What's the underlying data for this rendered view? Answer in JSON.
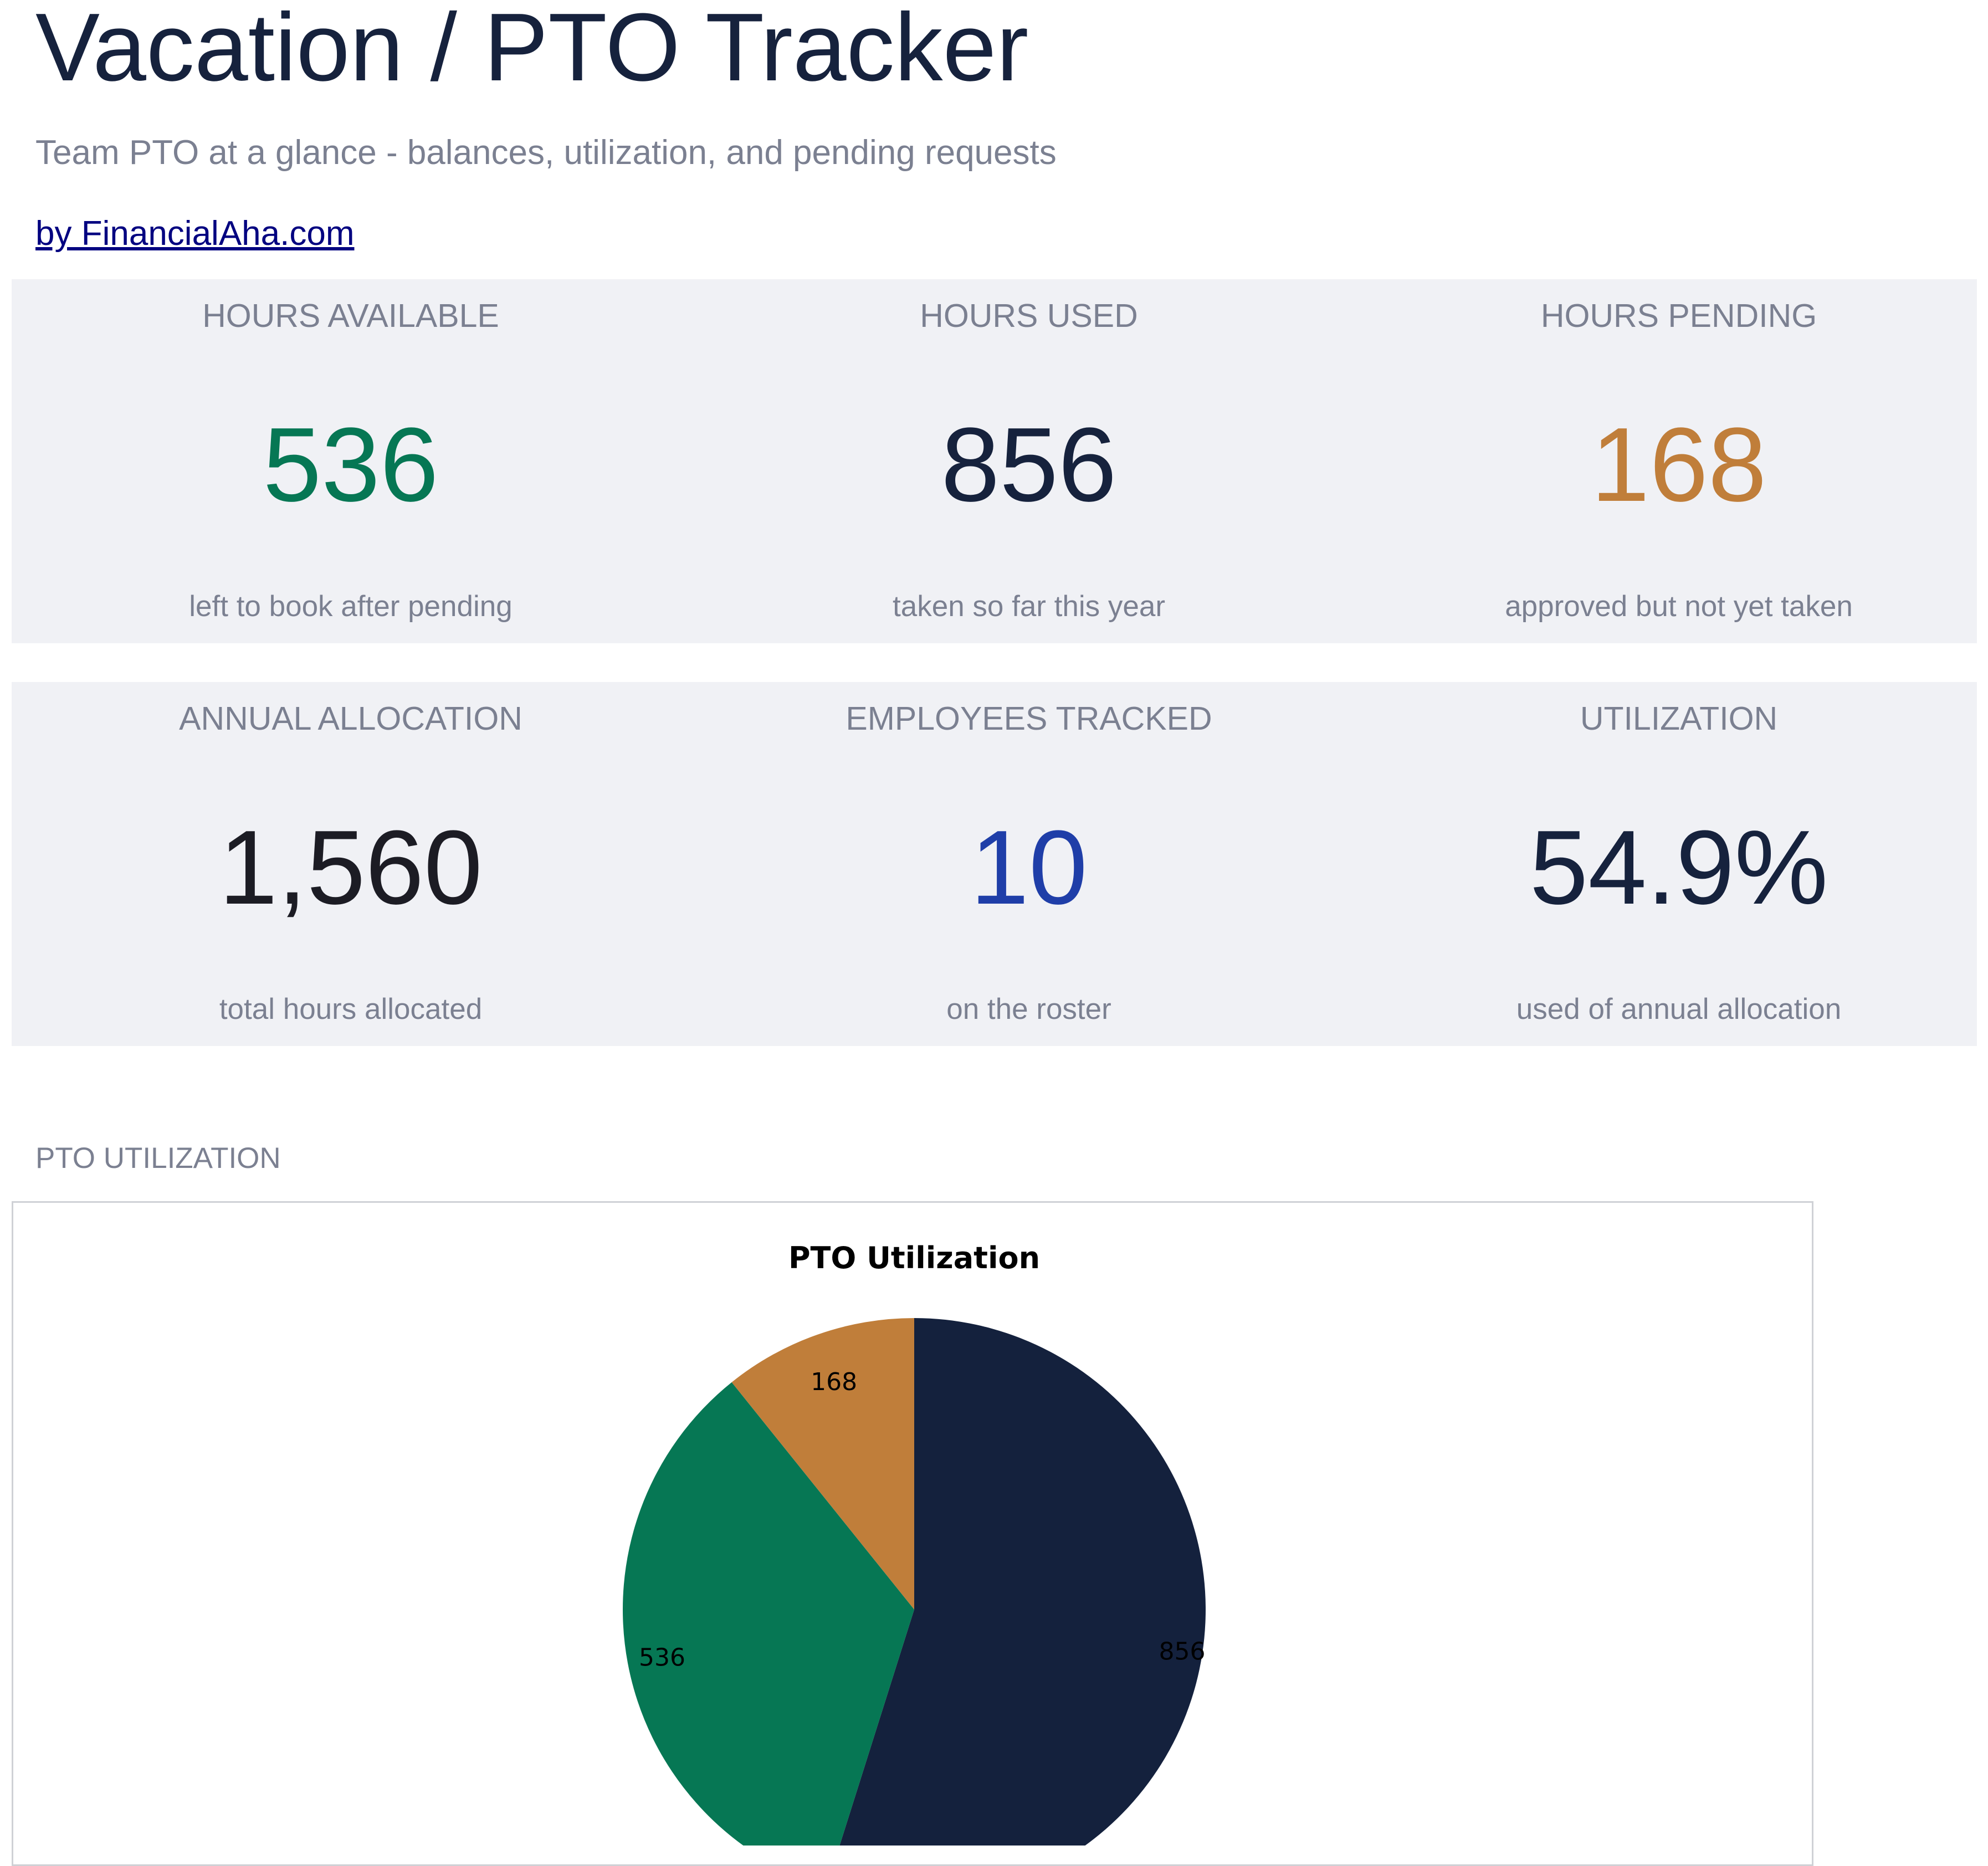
{
  "header": {
    "title": "Vacation / PTO Tracker",
    "subtitle": "Team PTO at a glance - balances, utilization, and pending requests",
    "credit_link": "by FinancialAha.com"
  },
  "kpis_row1": [
    {
      "label": "HOURS AVAILABLE",
      "value": "536",
      "note": "left to book after pending",
      "color": "#067754"
    },
    {
      "label": "HOURS USED",
      "value": "856",
      "note": "taken so far this year",
      "color": "#16223d"
    },
    {
      "label": "HOURS PENDING",
      "value": "168",
      "note": "approved but not yet taken",
      "color": "#c07e3a"
    }
  ],
  "kpis_row2": [
    {
      "label": "ANNUAL ALLOCATION",
      "value": "1,560",
      "note": "total hours allocated",
      "color": "#1c1c24"
    },
    {
      "label": "EMPLOYEES TRACKED",
      "value": "10",
      "note": "on the roster",
      "color": "#1f3ea8"
    },
    {
      "label": "UTILIZATION",
      "value": "54.9%",
      "note": "used of annual allocation",
      "color": "#16223d"
    }
  ],
  "section": {
    "chart_heading": "PTO UTILIZATION"
  },
  "chart_data": {
    "type": "pie",
    "title": "PTO Utilization",
    "values": [
      856,
      536,
      168
    ],
    "labels": [
      "856",
      "536",
      "168"
    ],
    "colors": [
      "#14213d",
      "#067754",
      "#c07e3a"
    ],
    "start_angle_deg": 0,
    "direction": "clockwise"
  }
}
